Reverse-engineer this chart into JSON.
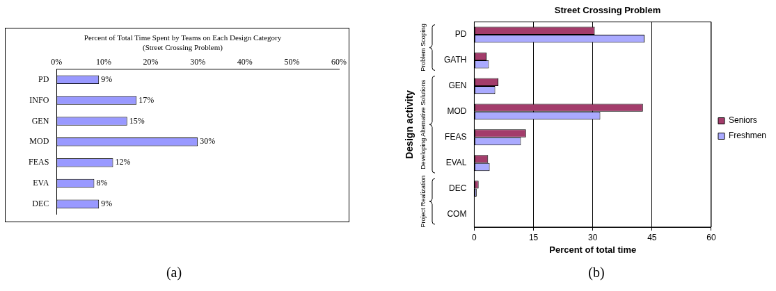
{
  "chart_data": [
    {
      "type": "bar",
      "orientation": "horizontal",
      "title": "Percent of Total Time Spent by Teams on Each Design Category",
      "subtitle": "(Street Crossing Problem)",
      "categories": [
        "PD",
        "INFO",
        "GEN",
        "MOD",
        "FEAS",
        "EVA",
        "DEC"
      ],
      "values": [
        9,
        17,
        15,
        30,
        12,
        8,
        9
      ],
      "value_labels": [
        "9%",
        "17%",
        "15%",
        "30%",
        "12%",
        "8%",
        "9%"
      ],
      "color": "#9999ff",
      "x2lim": [
        0,
        60
      ],
      "x2ticks": [
        {
          "value": 0,
          "label": "0%"
        },
        {
          "value": 10,
          "label": "10%"
        },
        {
          "value": 20,
          "label": "20%"
        },
        {
          "value": 30,
          "label": "30%"
        },
        {
          "value": 40,
          "label": "40%"
        },
        {
          "value": 50,
          "label": "50%"
        },
        {
          "value": 60,
          "label": "60%"
        }
      ],
      "grid": false,
      "legend": false,
      "annotations": [
        "(a)"
      ]
    },
    {
      "type": "bar",
      "orientation": "horizontal",
      "title": "Street Crossing Problem",
      "xlabel": "Percent of total time",
      "ylabel": "Design activity",
      "categories": [
        "PD",
        "GATH",
        "GEN",
        "MOD",
        "FEAS",
        "EVAL",
        "DEC",
        "COM"
      ],
      "series": [
        {
          "name": "Seniors",
          "color": "#a33c6b",
          "values": [
            30.5,
            3.1,
            6.1,
            42.7,
            13.1,
            3.5,
            1.1,
            0
          ]
        },
        {
          "name": "Freshmen",
          "color": "#aaaaff",
          "values": [
            43.1,
            3.7,
            5.3,
            31.9,
            11.8,
            3.9,
            0.6,
            0
          ]
        }
      ],
      "xlim": [
        0,
        60
      ],
      "xticks": [
        0,
        15,
        30,
        45,
        60
      ],
      "grid": "x",
      "legend": "right",
      "annotations": [
        "Problem Scoping",
        "Developing Alternative Solutions",
        "Project Realization",
        "(b)"
      ]
    }
  ]
}
